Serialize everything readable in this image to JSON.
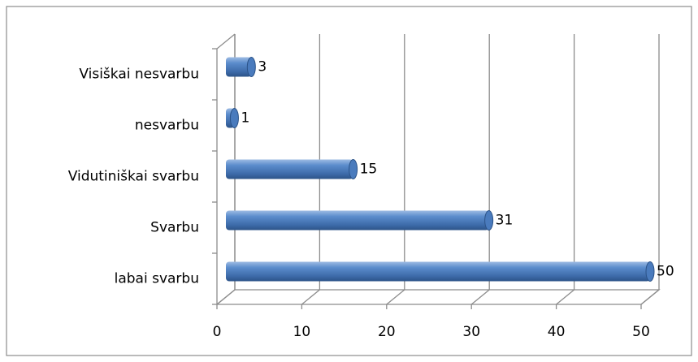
{
  "chart_data": {
    "type": "bar",
    "orientation": "horizontal",
    "categories": [
      "labai svarbu",
      "Svarbu",
      "Vidutiniškai svarbu",
      "nesvarbu",
      "Visiškai nesvarbu"
    ],
    "values": [
      50,
      31,
      15,
      1,
      3
    ],
    "color": "#4f81bd",
    "xlim": [
      0,
      50
    ],
    "xticks": [
      0,
      10,
      20,
      30,
      40,
      50
    ],
    "grid": true
  }
}
